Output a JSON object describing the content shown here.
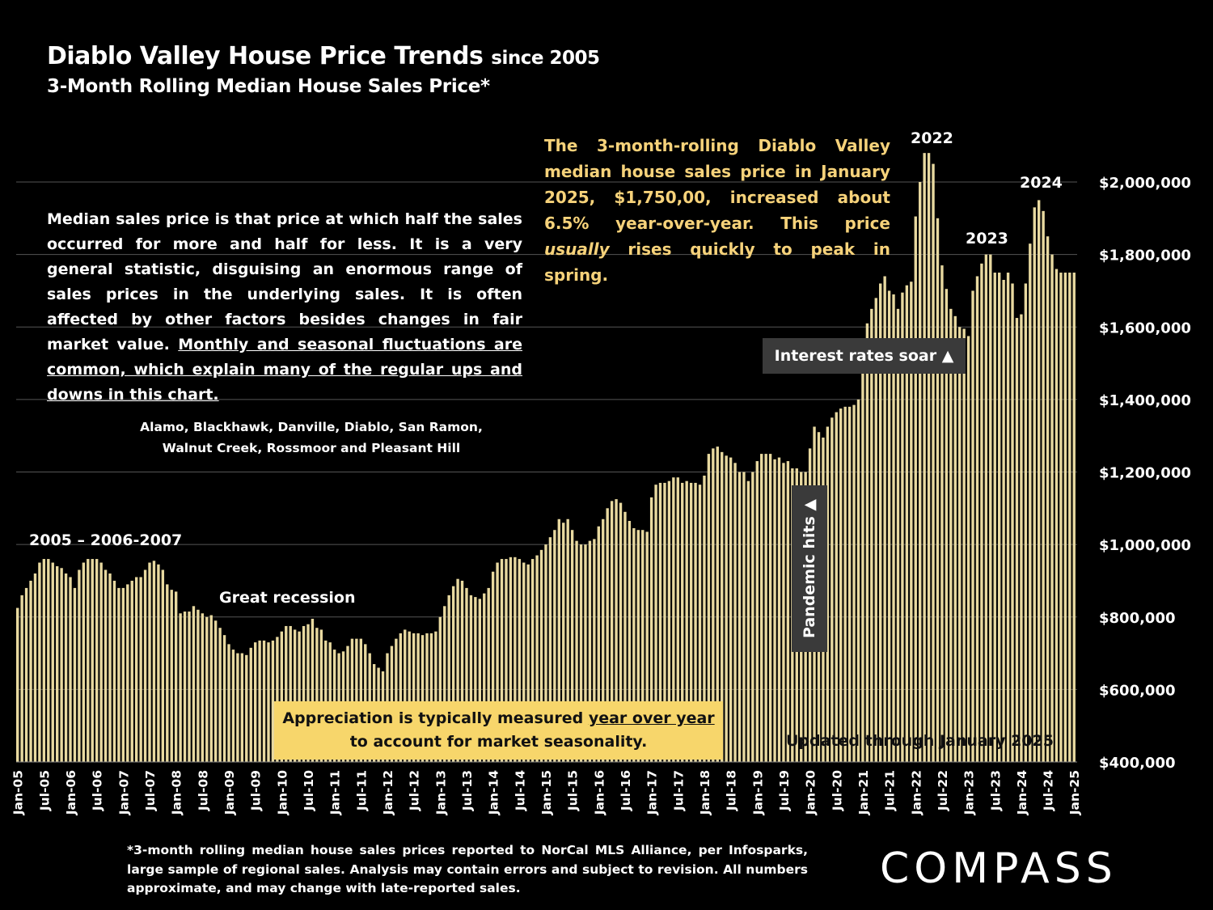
{
  "header": {
    "title_main": "Diablo Valley House Price Trends",
    "title_suffix": "since 2005",
    "subtitle": "3-Month Rolling Median House Sales Price*"
  },
  "note": {
    "part1": "Median sales price is that price at which half the sales occurred for more and half for less. It is a very general statistic, disguising an enormous range of sales prices in the underlying sales. It is often affected by other factors besides changes in fair market value. ",
    "part2_underlined": "Monthly and seasonal fluctuations are common, which explain many of the regular ups and downs in this chart."
  },
  "areas": {
    "line1": "Alamo, Blackhawk, Danville, Diablo, San Ramon,",
    "line2": "Walnut Creek, Rossmoor and Pleasant Hill"
  },
  "summary": {
    "part1": "The 3-month-rolling Diablo Valley median house sales price in January 2025, $1,750,00, increased about 6.5% year-over-year. This price ",
    "italic": "usually",
    "part2": " rises quickly to peak in spring."
  },
  "annotations": {
    "label_2005": "2005 – 2006-2007",
    "label_recession": "Great recession",
    "label_2022": "2022",
    "label_2023": "2023",
    "label_2024": "2024",
    "interest_rates": "Interest rates soar ▲",
    "pandemic": "Pandemic hits ▲",
    "appreciation_part1": "Appreciation is typically measured ",
    "appreciation_underlined": "year over year",
    "appreciation_line2": "to account for market seasonality.",
    "updated": "Updated through January 2025"
  },
  "footnote": "*3-month rolling median house sales prices reported to NorCal MLS Alliance, per Infosparks, large sample of regional sales. Analysis may contain errors and subject to revision. All numbers approximate, and may change with late-reported sales.",
  "logo": "COMPASS",
  "colors": {
    "background": "#000000",
    "bar": "#e8d9a0",
    "summary_text": "#f6d27a",
    "appreciation_box": "#f7d66b",
    "dark_box": "#3a3a3a",
    "gridline": "#555555"
  },
  "chart_data": {
    "type": "bar",
    "start": "Jan-05",
    "y_unit": "USD",
    "ylim": [
      400000,
      2000000
    ],
    "y_ticks": [
      "$400,000",
      "$600,000",
      "$800,000",
      "$1,000,000",
      "$1,200,000",
      "$1,400,000",
      "$1,600,000",
      "$1,800,000",
      "$2,000,000"
    ],
    "y_tick_values": [
      400000,
      600000,
      800000,
      1000000,
      1200000,
      1400000,
      1600000,
      1800000,
      2000000
    ],
    "x_tick_labels": [
      "Jan-05",
      "Jul-05",
      "Jan-06",
      "Jul-06",
      "Jan-07",
      "Jul-07",
      "Jan-08",
      "Jul-08",
      "Jan-09",
      "Jul-09",
      "Jan-10",
      "Jul-10",
      "Jan-11",
      "Jul-11",
      "Jan-12",
      "Jul-12",
      "Jan-13",
      "Jul-13",
      "Jan-14",
      "Jul-14",
      "Jan-15",
      "Jul-15",
      "Jan-16",
      "Jul-16",
      "Jan-17",
      "Jul-17",
      "Jan-18",
      "Jul-18",
      "Jan-19",
      "Jul-19",
      "Jan-20",
      "Jul-20",
      "Jan-21",
      "Jul-21",
      "Jan-22",
      "Jul-22",
      "Jan-23",
      "Jul-23",
      "Jan-24",
      "Jul-24",
      "Jan-25"
    ],
    "grid": true,
    "values": [
      825000,
      860000,
      880000,
      900000,
      920000,
      950000,
      960000,
      960000,
      950000,
      940000,
      935000,
      920000,
      910000,
      880000,
      930000,
      950000,
      960000,
      960000,
      960000,
      950000,
      930000,
      920000,
      900000,
      880000,
      880000,
      890000,
      900000,
      910000,
      910000,
      930000,
      950000,
      955000,
      945000,
      930000,
      890000,
      875000,
      870000,
      810000,
      815000,
      815000,
      830000,
      820000,
      810000,
      800000,
      805000,
      790000,
      770000,
      750000,
      725000,
      710000,
      700000,
      700000,
      695000,
      715000,
      730000,
      735000,
      735000,
      730000,
      735000,
      745000,
      760000,
      775000,
      775000,
      765000,
      760000,
      775000,
      780000,
      795000,
      770000,
      765000,
      735000,
      730000,
      710000,
      700000,
      705000,
      720000,
      740000,
      740000,
      740000,
      725000,
      700000,
      670000,
      660000,
      650000,
      700000,
      720000,
      740000,
      755000,
      765000,
      760000,
      755000,
      755000,
      750000,
      755000,
      755000,
      760000,
      800000,
      830000,
      860000,
      885000,
      905000,
      900000,
      880000,
      860000,
      855000,
      850000,
      865000,
      880000,
      925000,
      950000,
      960000,
      960000,
      965000,
      965000,
      960000,
      950000,
      945000,
      960000,
      970000,
      985000,
      1000000,
      1020000,
      1040000,
      1070000,
      1060000,
      1070000,
      1040000,
      1010000,
      1000000,
      1000000,
      1010000,
      1015000,
      1050000,
      1070000,
      1100000,
      1120000,
      1125000,
      1115000,
      1090000,
      1065000,
      1045000,
      1040000,
      1040000,
      1035000,
      1130000,
      1165000,
      1170000,
      1170000,
      1175000,
      1185000,
      1185000,
      1170000,
      1175000,
      1170000,
      1170000,
      1165000,
      1190000,
      1250000,
      1265000,
      1270000,
      1255000,
      1245000,
      1240000,
      1225000,
      1200000,
      1200000,
      1175000,
      1200000,
      1230000,
      1250000,
      1250000,
      1250000,
      1235000,
      1240000,
      1225000,
      1230000,
      1210000,
      1210000,
      1200000,
      1200000,
      1265000,
      1325000,
      1310000,
      1295000,
      1325000,
      1350000,
      1365000,
      1375000,
      1380000,
      1380000,
      1385000,
      1400000,
      1480000,
      1610000,
      1650000,
      1680000,
      1720000,
      1740000,
      1700000,
      1690000,
      1650000,
      1695000,
      1715000,
      1725000,
      1905000,
      2000000,
      2080000,
      2080000,
      2050000,
      1900000,
      1770000,
      1705000,
      1650000,
      1630000,
      1600000,
      1595000,
      1575000,
      1700000,
      1740000,
      1775000,
      1800000,
      1800000,
      1750000,
      1750000,
      1730000,
      1750000,
      1720000,
      1625000,
      1635000,
      1720000,
      1830000,
      1930000,
      1950000,
      1920000,
      1850000,
      1800000,
      1760000,
      1750000,
      1750000,
      1750000,
      1750000
    ]
  }
}
